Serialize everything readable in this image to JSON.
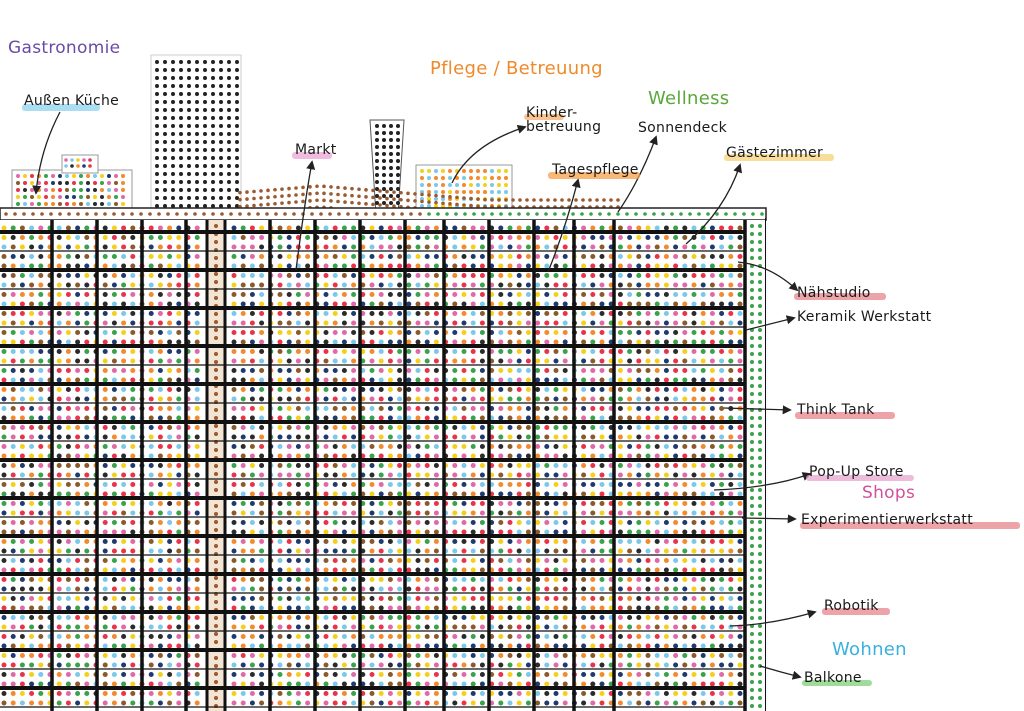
{
  "categories": {
    "gastronomie": {
      "text": "Gastronomie",
      "color": "#6a4aa6"
    },
    "pflege": {
      "text": "Pflege / Betreuung",
      "color": "#ef8a2a"
    },
    "wellness": {
      "text": "Wellness",
      "color": "#5aa83a"
    },
    "shops": {
      "text": "Shops",
      "color": "#d0509a"
    },
    "wohnen": {
      "text": "Wohnen",
      "color": "#3ab0dc"
    }
  },
  "labels": {
    "aussen_kueche": {
      "text": "Außen Küche",
      "highlight": "#8fd3ef"
    },
    "markt": {
      "text": "Markt",
      "highlight": "#e8a6d0"
    },
    "kinderbetreuung_1": {
      "text": "Kinder-",
      "highlight": "#f6b26b"
    },
    "kinderbetreuung_2": {
      "text": "betreuung",
      "highlight": "#f6b26b"
    },
    "sonnendeck": {
      "text": "Sonnendeck",
      "highlight": ""
    },
    "tagespflege": {
      "text": "Tagespflege",
      "highlight": "#f6a04a"
    },
    "gaestezimmer": {
      "text": "Gästezimmer",
      "highlight": "#f7d27a"
    },
    "naehstudio": {
      "text": "Nähstudio",
      "highlight": "#e7868c"
    },
    "keramik": {
      "text": "Keramik Werkstatt",
      "highlight": ""
    },
    "think_tank": {
      "text": "Think Tank",
      "highlight": "#e7868c"
    },
    "popup": {
      "text": "Pop-Up Store",
      "highlight": "#e8a6d0"
    },
    "experimentier": {
      "text": "Experimentierwerkstatt",
      "highlight": "#e7868c"
    },
    "robotik": {
      "text": "Robotik",
      "highlight": "#e7868c"
    },
    "balkone": {
      "text": "Balkone",
      "highlight": "#7fd07a"
    }
  },
  "palette": {
    "dot_colors": [
      "#1f3a6e",
      "#e8334a",
      "#f28a2e",
      "#3aa24a",
      "#e06aa8",
      "#f4d01c",
      "#8b5a2b",
      "#7cc8ea",
      "#2b2b2b"
    ],
    "facade_line": "#111111",
    "tower_dots": "#222222",
    "roof_dots": "#9b5a2f",
    "balcony_dots": "#3aa24a"
  }
}
